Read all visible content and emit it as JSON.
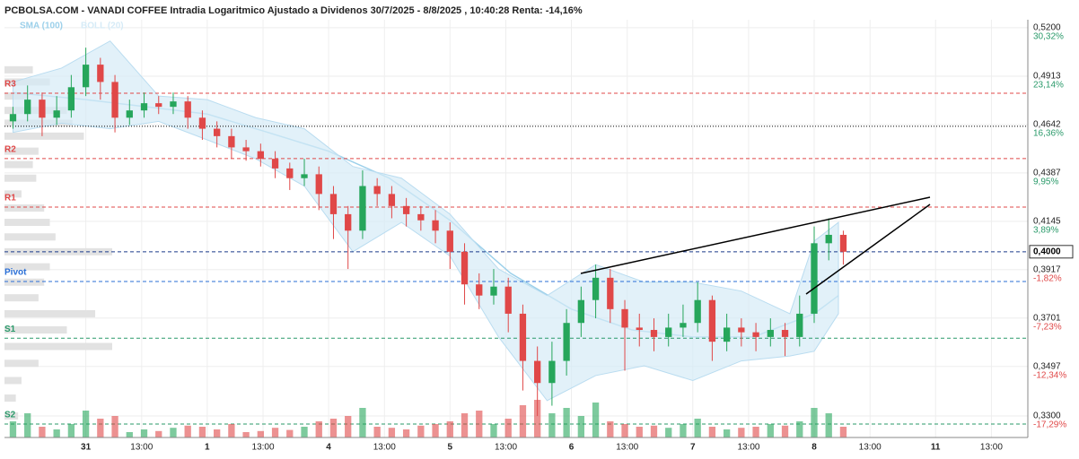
{
  "chart_data": {
    "type": "candlestick",
    "title": "PCBOLSA.COM - VANADI COFFEE Intradia Logaritmico Ajustado a Dividenos 30/7/2025 - 8/8/2025 , 10:40:28 Renta: -14,16%",
    "log_scale": true,
    "ylim": [
      0.3218,
      0.5249
    ],
    "yticks": [
      {
        "value": 0.52,
        "label": "0,5200"
      },
      {
        "value": 0.4913,
        "label": "0,4913"
      },
      {
        "value": 0.4642,
        "label": "0,4642"
      },
      {
        "value": 0.4387,
        "label": "0,4387"
      },
      {
        "value": 0.4145,
        "label": "0,4145"
      },
      {
        "value": 0.3917,
        "label": "0,3917"
      },
      {
        "value": 0.3701,
        "label": "0,3701"
      },
      {
        "value": 0.3497,
        "label": "0,3497"
      },
      {
        "value": 0.33,
        "label": "0,3300"
      }
    ],
    "y2lim": [
      -19.35,
      31.55
    ],
    "y2ticks": [
      {
        "value": 30.32,
        "label": "30,32%"
      },
      {
        "value": 23.14,
        "label": "23,14%"
      },
      {
        "value": 16.36,
        "label": "16,36%"
      },
      {
        "value": 9.95,
        "label": "9,95%"
      },
      {
        "value": 3.89,
        "label": "3,89%"
      },
      {
        "value": -1.82,
        "label": "-1,82%"
      },
      {
        "value": -7.23,
        "label": "-7,23%"
      },
      {
        "value": -12.34,
        "label": "-12,34%"
      },
      {
        "value": -17.29,
        "label": "-17,29%"
      }
    ],
    "xlim": [
      -0.67,
      7.76
    ],
    "xticks": [
      {
        "value": 0,
        "label": "31"
      },
      {
        "value": 0.46,
        "label": "13:00"
      },
      {
        "value": 1,
        "label": "1"
      },
      {
        "value": 1.46,
        "label": "13:00"
      },
      {
        "value": 2,
        "label": "4"
      },
      {
        "value": 2.46,
        "label": "13:00"
      },
      {
        "value": 3,
        "label": "5"
      },
      {
        "value": 3.46,
        "label": "13:00"
      },
      {
        "value": 4,
        "label": "6"
      },
      {
        "value": 4.46,
        "label": "13:00"
      },
      {
        "value": 5,
        "label": "7"
      },
      {
        "value": 5.46,
        "label": "13:00"
      },
      {
        "value": 6,
        "label": "8"
      },
      {
        "value": 6.46,
        "label": "13:00"
      },
      {
        "value": 7,
        "label": "11"
      },
      {
        "value": 7.46,
        "label": "13:00"
      }
    ],
    "grid": true,
    "up_color": "#26a65b",
    "down_color": "#e04848",
    "candles": {
      "x": [
        -0.6,
        -0.48,
        -0.36,
        -0.24,
        -0.12,
        0,
        0.12,
        0.24,
        0.36,
        0.48,
        0.6,
        0.72,
        0.84,
        0.96,
        1.08,
        1.2,
        1.32,
        1.44,
        1.56,
        1.68,
        1.8,
        1.92,
        2.04,
        2.16,
        2.28,
        2.4,
        2.52,
        2.64,
        2.76,
        2.88,
        3,
        3.12,
        3.24,
        3.36,
        3.48,
        3.6,
        3.72,
        3.84,
        3.96,
        4.08,
        4.2,
        4.32,
        4.44,
        4.56,
        4.68,
        4.8,
        4.92,
        5.04,
        5.16,
        5.28,
        5.4,
        5.52,
        5.64,
        5.76,
        5.88,
        6,
        6.12,
        6.24
      ],
      "open": [
        0.466,
        0.47,
        0.478,
        0.468,
        0.472,
        0.485,
        0.498,
        0.488,
        0.468,
        0.472,
        0.476,
        0.474,
        0.477,
        0.468,
        0.462,
        0.458,
        0.452,
        0.45,
        0.446,
        0.441,
        0.436,
        0.438,
        0.428,
        0.418,
        0.41,
        0.432,
        0.428,
        0.422,
        0.418,
        0.415,
        0.41,
        0.4,
        0.385,
        0.38,
        0.384,
        0.372,
        0.352,
        0.343,
        0.352,
        0.368,
        0.378,
        0.388,
        0.374,
        0.366,
        0.365,
        0.362,
        0.366,
        0.368,
        0.378,
        0.36,
        0.366,
        0.364,
        0.362,
        0.365,
        0.362,
        0.372,
        0.404,
        0.408
      ],
      "high": [
        0.474,
        0.486,
        0.482,
        0.48,
        0.492,
        0.508,
        0.502,
        0.492,
        0.478,
        0.482,
        0.48,
        0.482,
        0.48,
        0.472,
        0.466,
        0.462,
        0.456,
        0.454,
        0.45,
        0.444,
        0.446,
        0.442,
        0.432,
        0.422,
        0.44,
        0.436,
        0.432,
        0.426,
        0.422,
        0.42,
        0.414,
        0.404,
        0.39,
        0.392,
        0.388,
        0.376,
        0.358,
        0.36,
        0.374,
        0.384,
        0.394,
        0.392,
        0.378,
        0.372,
        0.37,
        0.372,
        0.376,
        0.386,
        0.38,
        0.372,
        0.37,
        0.368,
        0.37,
        0.368,
        0.38,
        0.412,
        0.416,
        0.41
      ],
      "low": [
        0.462,
        0.466,
        0.458,
        0.464,
        0.468,
        0.48,
        0.478,
        0.46,
        0.464,
        0.468,
        0.47,
        0.47,
        0.462,
        0.456,
        0.452,
        0.446,
        0.445,
        0.442,
        0.436,
        0.43,
        0.432,
        0.42,
        0.406,
        0.392,
        0.406,
        0.422,
        0.416,
        0.412,
        0.41,
        0.404,
        0.392,
        0.376,
        0.374,
        0.376,
        0.364,
        0.34,
        0.33,
        0.334,
        0.346,
        0.362,
        0.37,
        0.368,
        0.348,
        0.358,
        0.356,
        0.358,
        0.362,
        0.364,
        0.352,
        0.356,
        0.358,
        0.356,
        0.358,
        0.354,
        0.358,
        0.368,
        0.396,
        0.394
      ],
      "close": [
        0.47,
        0.478,
        0.468,
        0.472,
        0.485,
        0.498,
        0.488,
        0.468,
        0.472,
        0.476,
        0.474,
        0.477,
        0.468,
        0.462,
        0.458,
        0.452,
        0.45,
        0.446,
        0.441,
        0.436,
        0.438,
        0.428,
        0.418,
        0.41,
        0.432,
        0.428,
        0.422,
        0.418,
        0.415,
        0.41,
        0.4,
        0.385,
        0.38,
        0.384,
        0.372,
        0.352,
        0.343,
        0.352,
        0.368,
        0.378,
        0.388,
        0.374,
        0.366,
        0.365,
        0.362,
        0.366,
        0.368,
        0.378,
        0.36,
        0.366,
        0.364,
        0.362,
        0.365,
        0.362,
        0.372,
        0.404,
        0.408,
        0.4
      ],
      "volume": [
        30,
        45,
        20,
        15,
        25,
        50,
        35,
        40,
        10,
        15,
        12,
        18,
        22,
        20,
        15,
        25,
        10,
        12,
        18,
        14,
        20,
        30,
        35,
        40,
        55,
        20,
        18,
        15,
        22,
        25,
        30,
        45,
        50,
        25,
        35,
        60,
        70,
        45,
        55,
        40,
        65,
        30,
        25,
        20,
        22,
        18,
        25,
        35,
        20,
        15,
        18,
        20,
        25,
        22,
        30,
        55,
        45,
        20
      ]
    },
    "vlim": [
      0,
      100
    ],
    "indicators": [
      {
        "name": "SMA (100)",
        "color": "#9cd0ea",
        "x": [
          -0.6,
          0,
          0.5,
          1,
          1.5,
          2,
          2.5,
          3,
          3.5,
          4,
          4.5,
          5,
          5.5,
          6,
          6.2
        ],
        "values": [
          0.482,
          0.478,
          0.474,
          0.47,
          0.46,
          0.45,
          0.436,
          0.415,
          0.39,
          0.374,
          0.365,
          0.362,
          0.362,
          0.372,
          0.38
        ]
      },
      {
        "name": "BOLL (20)",
        "color": "#d6ebf7",
        "x": [
          -0.6,
          -0.2,
          0.2,
          0.6,
          1,
          1.4,
          1.8,
          2.2,
          2.6,
          3,
          3.4,
          3.8,
          4.2,
          4.6,
          5,
          5.4,
          5.8,
          6,
          6.2
        ],
        "upper": [
          0.488,
          0.496,
          0.512,
          0.48,
          0.478,
          0.468,
          0.462,
          0.442,
          0.436,
          0.418,
          0.392,
          0.38,
          0.394,
          0.386,
          0.386,
          0.382,
          0.372,
          0.405,
          0.414
        ],
        "lower": [
          0.46,
          0.465,
          0.462,
          0.466,
          0.456,
          0.446,
          0.432,
          0.4,
          0.414,
          0.398,
          0.362,
          0.336,
          0.346,
          0.35,
          0.344,
          0.352,
          0.354,
          0.356,
          0.372
        ]
      }
    ],
    "levels": [
      {
        "name": "R3",
        "value": 0.4816,
        "color": "#e04848"
      },
      {
        "name": "R2",
        "value": 0.4461,
        "color": "#e04848"
      },
      {
        "name": "R1",
        "value": 0.4215,
        "color": "#e04848"
      },
      {
        "name": "Pivot",
        "value": 0.3863,
        "color": "#2a6fd6"
      },
      {
        "name": "S1",
        "value": 0.3615,
        "color": "#2a9a6a"
      },
      {
        "name": "S2",
        "value": 0.3269,
        "color": "#2a9a6a"
      }
    ],
    "reference_line": 0.4633,
    "last_price": {
      "value": 0.4,
      "label": "0,4000"
    },
    "volume_profile": {
      "prices": [
        0.495,
        0.488,
        0.48,
        0.472,
        0.465,
        0.458,
        0.45,
        0.443,
        0.436,
        0.428,
        0.421,
        0.414,
        0.407,
        0.4,
        0.393,
        0.386,
        0.379,
        0.372,
        0.365,
        0.358,
        0.351,
        0.344,
        0.337,
        0.33
      ],
      "values": [
        25,
        40,
        20,
        55,
        60,
        70,
        30,
        25,
        28,
        15,
        35,
        40,
        45,
        95,
        40,
        35,
        30,
        80,
        55,
        95,
        30,
        15,
        10,
        12
      ]
    }
  }
}
